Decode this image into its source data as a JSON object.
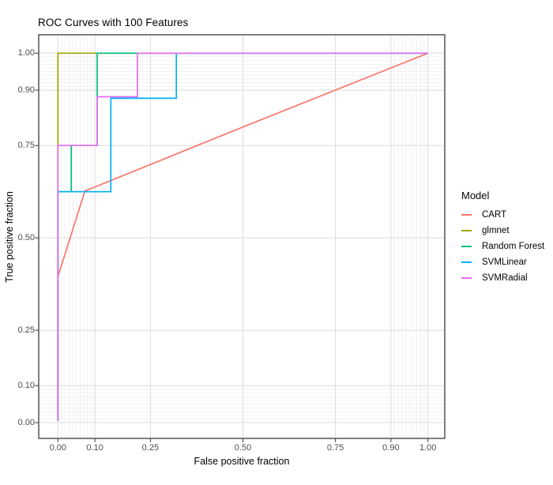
{
  "chart_data": {
    "type": "line",
    "title": "ROC Curves with 100 Features",
    "xlabel": "False positive fraction",
    "ylabel": "True positive fraction",
    "xlim": [
      0,
      1
    ],
    "ylim": [
      0,
      1
    ],
    "grid": "on",
    "axis_breaks": [
      0,
      0.1,
      0.25,
      0.5,
      0.75,
      0.9,
      1.0
    ],
    "tick_labels": [
      "0.00",
      "0.10",
      "0.25",
      "0.50",
      "0.75",
      "0.90",
      "1.00"
    ],
    "minor_breaks": [
      0.01,
      0.02,
      0.03,
      0.04,
      0.05,
      0.06,
      0.07,
      0.08,
      0.09,
      0.91,
      0.92,
      0.93,
      0.94,
      0.95,
      0.96,
      0.97,
      0.98,
      0.99
    ],
    "legend_title": "Model",
    "legend_position": "right",
    "series": [
      {
        "name": "CART",
        "color": "#F8766D",
        "points": [
          [
            0,
            0.005
          ],
          [
            0,
            0.395
          ],
          [
            0.073,
            0.627
          ],
          [
            0.5,
            0.8
          ],
          [
            1,
            1
          ]
        ]
      },
      {
        "name": "glmnet",
        "color": "#A3A500",
        "points": [
          [
            0,
            0.005
          ],
          [
            0,
            1
          ],
          [
            1,
            1
          ]
        ]
      },
      {
        "name": "Random Forest",
        "color": "#00BF7D",
        "points": [
          [
            0,
            0.005
          ],
          [
            0,
            0.625
          ],
          [
            0.036,
            0.625
          ],
          [
            0.036,
            0.75
          ],
          [
            0.106,
            0.75
          ],
          [
            0.106,
            1
          ],
          [
            1,
            1
          ]
        ]
      },
      {
        "name": "SVMLinear",
        "color": "#00B0F6",
        "points": [
          [
            0,
            0.005
          ],
          [
            0,
            0.625
          ],
          [
            0.143,
            0.625
          ],
          [
            0.143,
            0.878
          ],
          [
            0.32,
            0.878
          ],
          [
            0.32,
            1
          ],
          [
            1,
            1
          ]
        ]
      },
      {
        "name": "SVMRadial",
        "color": "#E76BF3",
        "points": [
          [
            0,
            0.005
          ],
          [
            0,
            0.75
          ],
          [
            0.106,
            0.75
          ],
          [
            0.106,
            0.882
          ],
          [
            0.215,
            0.882
          ],
          [
            0.215,
            1
          ],
          [
            1,
            1
          ]
        ]
      }
    ],
    "style": {
      "panel_background": "#ffffff",
      "major_grid": "#dcdcdc",
      "minor_grid": "#ededed",
      "panel_border": "#474747",
      "tick_mark_color": "#333333",
      "tick_label_color": "#4d4d4d",
      "line_width": 1.7
    }
  }
}
